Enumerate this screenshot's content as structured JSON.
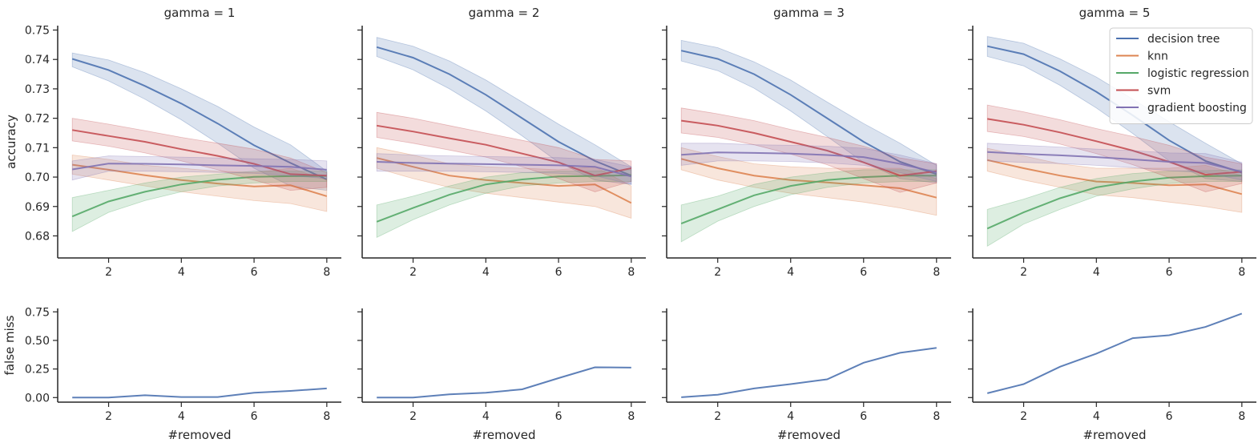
{
  "ylabels": {
    "accuracy": "accuracy",
    "false_miss": "false miss"
  },
  "xlabel": "#removed",
  "legend": {
    "placement": "top-right"
  },
  "colors": {
    "decision tree": "#4c72b0",
    "knn": "#dd8452",
    "logistic regression": "#55a868",
    "svm": "#c44e52",
    "gradient boosting": "#8172b3"
  },
  "chart_data": [
    {
      "type": "line",
      "title": "gamma = 1",
      "x": [
        1,
        2,
        3,
        4,
        5,
        6,
        7,
        8
      ],
      "ylabel": "accuracy",
      "ylim": [
        0.6725,
        0.7515
      ],
      "yticks": [
        0.68,
        0.69,
        0.7,
        0.71,
        0.72,
        0.73,
        0.74,
        0.75
      ],
      "xticks": [
        2,
        4,
        6,
        8
      ],
      "series": [
        {
          "name": "decision tree",
          "values": [
            0.7402,
            0.7364,
            0.731,
            0.725,
            0.7182,
            0.7108,
            0.7048,
            0.6992
          ],
          "lower": [
            0.7375,
            0.7327,
            0.7265,
            0.7195,
            0.7115,
            0.703,
            0.697,
            0.6955
          ],
          "upper": [
            0.7422,
            0.7398,
            0.7355,
            0.73,
            0.724,
            0.717,
            0.711,
            0.702
          ]
        },
        {
          "name": "knn",
          "values": [
            0.7042,
            0.7025,
            0.7006,
            0.699,
            0.6978,
            0.6968,
            0.6972,
            0.6935
          ],
          "lower": [
            0.701,
            0.699,
            0.697,
            0.695,
            0.6935,
            0.692,
            0.691,
            0.6883
          ],
          "upper": [
            0.7075,
            0.706,
            0.704,
            0.703,
            0.702,
            0.7015,
            0.703,
            0.699
          ]
        },
        {
          "name": "logistic regression",
          "values": [
            0.6866,
            0.6917,
            0.695,
            0.6975,
            0.6991,
            0.7001,
            0.7003,
            0.7004
          ],
          "lower": [
            0.6815,
            0.688,
            0.692,
            0.695,
            0.697,
            0.698,
            0.6985,
            0.6985
          ],
          "upper": [
            0.693,
            0.6955,
            0.698,
            0.7,
            0.701,
            0.702,
            0.702,
            0.702
          ]
        },
        {
          "name": "svm",
          "values": [
            0.716,
            0.714,
            0.712,
            0.7095,
            0.7072,
            0.7045,
            0.701,
            0.7005
          ],
          "lower": [
            0.7123,
            0.7105,
            0.7082,
            0.7055,
            0.7025,
            0.699,
            0.6955,
            0.6965
          ],
          "upper": [
            0.72,
            0.718,
            0.7158,
            0.7135,
            0.7115,
            0.7095,
            0.7065,
            0.7015
          ]
        },
        {
          "name": "gradient boosting",
          "values": [
            0.7026,
            0.7046,
            0.7045,
            0.7043,
            0.704,
            0.7038,
            0.7035,
            0.7025
          ],
          "lower": [
            0.699,
            0.702,
            0.702,
            0.7018,
            0.7016,
            0.7013,
            0.7005,
            0.6995
          ],
          "upper": [
            0.7055,
            0.7072,
            0.707,
            0.7068,
            0.7065,
            0.7062,
            0.706,
            0.7055
          ]
        }
      ]
    },
    {
      "type": "line",
      "title": "gamma = 2",
      "x": [
        1,
        2,
        3,
        4,
        5,
        6,
        7,
        8
      ],
      "ylabel": "accuracy",
      "ylim": [
        0.6725,
        0.7515
      ],
      "yticks": [
        0.68,
        0.69,
        0.7,
        0.71,
        0.72,
        0.73,
        0.74,
        0.75
      ],
      "xticks": [
        2,
        4,
        6,
        8
      ],
      "series": [
        {
          "name": "decision tree",
          "values": [
            0.7442,
            0.7406,
            0.735,
            0.728,
            0.72,
            0.712,
            0.7055,
            0.7005
          ],
          "lower": [
            0.741,
            0.7365,
            0.73,
            0.7225,
            0.714,
            0.705,
            0.699,
            0.6975
          ],
          "upper": [
            0.7475,
            0.7445,
            0.7395,
            0.733,
            0.7255,
            0.718,
            0.711,
            0.7035
          ]
        },
        {
          "name": "knn",
          "values": [
            0.7065,
            0.7035,
            0.7005,
            0.699,
            0.698,
            0.697,
            0.6975,
            0.6912
          ],
          "lower": [
            0.703,
            0.6995,
            0.6965,
            0.6945,
            0.693,
            0.6915,
            0.69,
            0.686
          ],
          "upper": [
            0.71,
            0.7075,
            0.7045,
            0.7035,
            0.703,
            0.7025,
            0.7035,
            0.697
          ]
        },
        {
          "name": "logistic regression",
          "values": [
            0.6848,
            0.6895,
            0.694,
            0.6975,
            0.6992,
            0.7002,
            0.7004,
            0.7006
          ],
          "lower": [
            0.6795,
            0.6855,
            0.6905,
            0.6945,
            0.697,
            0.698,
            0.6985,
            0.6985
          ],
          "upper": [
            0.6905,
            0.6935,
            0.697,
            0.7,
            0.7015,
            0.702,
            0.702,
            0.7025
          ]
        },
        {
          "name": "svm",
          "values": [
            0.7175,
            0.7155,
            0.7132,
            0.711,
            0.708,
            0.705,
            0.7005,
            0.703
          ],
          "lower": [
            0.7135,
            0.7115,
            0.7092,
            0.7068,
            0.7035,
            0.6995,
            0.695,
            0.6985
          ],
          "upper": [
            0.722,
            0.72,
            0.7175,
            0.715,
            0.7125,
            0.71,
            0.706,
            0.7055
          ]
        },
        {
          "name": "gradient boosting",
          "values": [
            0.7052,
            0.7048,
            0.7046,
            0.7044,
            0.7042,
            0.704,
            0.7035,
            0.7002
          ],
          "lower": [
            0.702,
            0.702,
            0.702,
            0.7018,
            0.7016,
            0.7013,
            0.7005,
            0.6975
          ],
          "upper": [
            0.708,
            0.7075,
            0.7072,
            0.707,
            0.7068,
            0.7066,
            0.706,
            0.7035
          ]
        }
      ]
    },
    {
      "type": "line",
      "title": "gamma = 3",
      "x": [
        1,
        2,
        3,
        4,
        5,
        6,
        7,
        8
      ],
      "ylabel": "accuracy",
      "ylim": [
        0.6725,
        0.7515
      ],
      "yticks": [
        0.68,
        0.69,
        0.7,
        0.71,
        0.72,
        0.73,
        0.74,
        0.75
      ],
      "xticks": [
        2,
        4,
        6,
        8
      ],
      "series": [
        {
          "name": "decision tree",
          "values": [
            0.743,
            0.7402,
            0.735,
            0.728,
            0.72,
            0.712,
            0.7052,
            0.701
          ],
          "lower": [
            0.7395,
            0.7362,
            0.7302,
            0.7225,
            0.7138,
            0.705,
            0.6995,
            0.698
          ],
          "upper": [
            0.7465,
            0.744,
            0.7392,
            0.733,
            0.7255,
            0.7182,
            0.7115,
            0.704
          ]
        },
        {
          "name": "knn",
          "values": [
            0.7062,
            0.703,
            0.7005,
            0.699,
            0.6982,
            0.6972,
            0.6962,
            0.693
          ],
          "lower": [
            0.7025,
            0.699,
            0.6965,
            0.6945,
            0.693,
            0.6915,
            0.6895,
            0.687
          ],
          "upper": [
            0.71,
            0.707,
            0.7045,
            0.7035,
            0.703,
            0.703,
            0.703,
            0.6995
          ]
        },
        {
          "name": "logistic regression",
          "values": [
            0.6842,
            0.689,
            0.6938,
            0.697,
            0.699,
            0.7,
            0.7005,
            0.7005
          ],
          "lower": [
            0.678,
            0.685,
            0.69,
            0.694,
            0.6965,
            0.698,
            0.6985,
            0.6985
          ],
          "upper": [
            0.6905,
            0.6935,
            0.6975,
            0.7,
            0.7015,
            0.7025,
            0.7025,
            0.7025
          ]
        },
        {
          "name": "svm",
          "values": [
            0.7192,
            0.7175,
            0.715,
            0.712,
            0.709,
            0.705,
            0.7005,
            0.702
          ],
          "lower": [
            0.715,
            0.7135,
            0.711,
            0.7078,
            0.7042,
            0.6995,
            0.6948,
            0.698
          ],
          "upper": [
            0.7235,
            0.7215,
            0.7192,
            0.7162,
            0.7135,
            0.7105,
            0.7065,
            0.7045
          ]
        },
        {
          "name": "gradient boosting",
          "values": [
            0.7076,
            0.7084,
            0.7082,
            0.708,
            0.7075,
            0.7068,
            0.7045,
            0.7016
          ],
          "lower": [
            0.704,
            0.7055,
            0.7055,
            0.7053,
            0.7048,
            0.704,
            0.7015,
            0.6985
          ],
          "upper": [
            0.7115,
            0.7115,
            0.711,
            0.7108,
            0.7105,
            0.7098,
            0.7075,
            0.7045
          ]
        }
      ]
    },
    {
      "type": "line",
      "title": "gamma = 5",
      "x": [
        1,
        2,
        3,
        4,
        5,
        6,
        7,
        8
      ],
      "ylabel": "accuracy",
      "ylim": [
        0.6725,
        0.7515
      ],
      "yticks": [
        0.68,
        0.69,
        0.7,
        0.71,
        0.72,
        0.73,
        0.74,
        0.75
      ],
      "xticks": [
        2,
        4,
        6,
        8
      ],
      "series": [
        {
          "name": "decision tree",
          "values": [
            0.7445,
            0.7418,
            0.736,
            0.729,
            0.721,
            0.7125,
            0.7055,
            0.7015
          ],
          "lower": [
            0.741,
            0.7378,
            0.7312,
            0.7235,
            0.7148,
            0.7055,
            0.6995,
            0.6985
          ],
          "upper": [
            0.7478,
            0.7455,
            0.7402,
            0.734,
            0.7265,
            0.7188,
            0.7115,
            0.7045
          ]
        },
        {
          "name": "knn",
          "values": [
            0.7058,
            0.703,
            0.7005,
            0.6985,
            0.698,
            0.6972,
            0.6975,
            0.6942
          ],
          "lower": [
            0.702,
            0.699,
            0.6965,
            0.694,
            0.693,
            0.6915,
            0.69,
            0.688
          ],
          "upper": [
            0.7098,
            0.7072,
            0.7045,
            0.703,
            0.703,
            0.703,
            0.704,
            0.7005
          ]
        },
        {
          "name": "logistic regression",
          "values": [
            0.6825,
            0.688,
            0.6928,
            0.6965,
            0.6985,
            0.6998,
            0.7003,
            0.7005
          ],
          "lower": [
            0.6765,
            0.684,
            0.689,
            0.6935,
            0.696,
            0.6978,
            0.6985,
            0.6985
          ],
          "upper": [
            0.689,
            0.6925,
            0.6965,
            0.6995,
            0.7012,
            0.702,
            0.7022,
            0.7025
          ]
        },
        {
          "name": "svm",
          "values": [
            0.7198,
            0.7178,
            0.7152,
            0.7122,
            0.709,
            0.7052,
            0.7008,
            0.7018
          ],
          "lower": [
            0.7155,
            0.7138,
            0.7112,
            0.708,
            0.7042,
            0.6998,
            0.695,
            0.6978
          ],
          "upper": [
            0.7245,
            0.7222,
            0.7195,
            0.7165,
            0.7138,
            0.7108,
            0.7068,
            0.7045
          ]
        },
        {
          "name": "gradient boosting",
          "values": [
            0.7085,
            0.7079,
            0.7074,
            0.7068,
            0.706,
            0.7052,
            0.7048,
            0.7018
          ],
          "lower": [
            0.7055,
            0.705,
            0.7046,
            0.704,
            0.7032,
            0.7022,
            0.7015,
            0.699
          ],
          "upper": [
            0.7115,
            0.7108,
            0.7102,
            0.7095,
            0.709,
            0.7082,
            0.708,
            0.705
          ]
        }
      ]
    },
    {
      "type": "line",
      "x": [
        1,
        2,
        3,
        4,
        5,
        6,
        7,
        8
      ],
      "xlabel": "#removed",
      "ylabel": "false miss",
      "ylim": [
        -0.04,
        0.78
      ],
      "yticks": [
        0.0,
        0.25,
        0.5,
        0.75
      ],
      "ytick_labels": [
        "0.00",
        "0.25",
        "0.50",
        "0.75"
      ],
      "xticks": [
        2,
        4,
        6,
        8
      ],
      "series": [
        {
          "values": [
            0.0,
            0.0,
            0.02,
            0.005,
            0.005,
            0.042,
            0.058,
            0.08
          ]
        }
      ]
    },
    {
      "type": "line",
      "x": [
        1,
        2,
        3,
        4,
        5,
        6,
        7,
        8
      ],
      "xlabel": "#removed",
      "ylabel": "false miss",
      "ylim": [
        -0.04,
        0.78
      ],
      "yticks": [
        0.0,
        0.25,
        0.5,
        0.75
      ],
      "ytick_labels": [
        "0.00",
        "0.25",
        "0.50",
        "0.75"
      ],
      "xticks": [
        2,
        4,
        6,
        8
      ],
      "series": [
        {
          "values": [
            0.0,
            0.0,
            0.028,
            0.043,
            0.072,
            0.17,
            0.265,
            0.262
          ]
        }
      ]
    },
    {
      "type": "line",
      "x": [
        1,
        2,
        3,
        4,
        5,
        6,
        7,
        8
      ],
      "xlabel": "#removed",
      "ylabel": "false miss",
      "ylim": [
        -0.04,
        0.78
      ],
      "yticks": [
        0.0,
        0.25,
        0.5,
        0.75
      ],
      "ytick_labels": [
        "0.00",
        "0.25",
        "0.50",
        "0.75"
      ],
      "xticks": [
        2,
        4,
        6,
        8
      ],
      "series": [
        {
          "values": [
            0.003,
            0.025,
            0.08,
            0.118,
            0.16,
            0.305,
            0.392,
            0.435
          ]
        }
      ]
    },
    {
      "type": "line",
      "x": [
        1,
        2,
        3,
        4,
        5,
        6,
        7,
        8
      ],
      "xlabel": "#removed",
      "ylabel": "false miss",
      "ylim": [
        -0.04,
        0.78
      ],
      "yticks": [
        0.0,
        0.25,
        0.5,
        0.75
      ],
      "ytick_labels": [
        "0.00",
        "0.25",
        "0.50",
        "0.75"
      ],
      "xticks": [
        2,
        4,
        6,
        8
      ],
      "series": [
        {
          "values": [
            0.038,
            0.118,
            0.27,
            0.385,
            0.52,
            0.545,
            0.618,
            0.735
          ]
        }
      ]
    }
  ]
}
